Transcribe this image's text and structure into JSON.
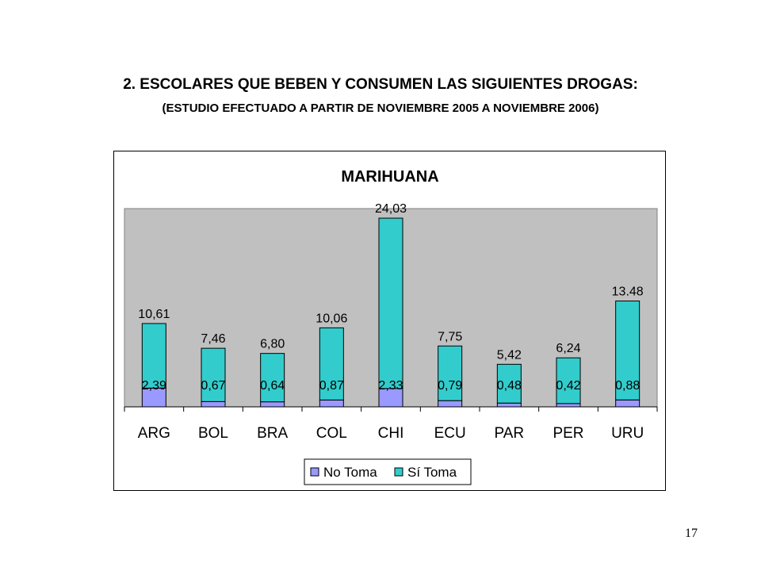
{
  "slide": {
    "title": "2. ESCOLARES QUE BEBEN Y CONSUMEN LAS SIGUIENTES DROGAS:",
    "subtitle": "(ESTUDIO EFECTUADO A PARTIR DE NOVIEMBRE 2005 A NOVIEMBRE 2006)",
    "page_number": "17"
  },
  "chart_data": {
    "type": "bar",
    "stacked": true,
    "title": "MARIHUANA",
    "categories": [
      "ARG",
      "BOL",
      "BRA",
      "COL",
      "CHI",
      "ECU",
      "PAR",
      "PER",
      "URU"
    ],
    "series": [
      {
        "name": "No Toma",
        "values": [
          2.39,
          0.67,
          0.64,
          0.87,
          2.33,
          0.79,
          0.48,
          0.42,
          0.88
        ],
        "labels": [
          "2,39",
          "0,67",
          "0,64",
          "0,87",
          "2,33",
          "0,79",
          "0,48",
          "0,42",
          "0,88"
        ],
        "color": "#9999ff"
      },
      {
        "name": "Sí Toma",
        "values": [
          8.22,
          6.79,
          6.16,
          9.19,
          21.7,
          6.96,
          4.94,
          5.82,
          12.6
        ],
        "color": "#33cccc"
      }
    ],
    "totals": [
      10.61,
      7.46,
      6.8,
      10.06,
      24.03,
      7.75,
      5.42,
      6.24,
      13.48
    ],
    "total_labels": [
      "10,61",
      "7,46",
      "6,80",
      "10,06",
      "24,03",
      "7,75",
      "5,42",
      "6,24",
      "13.48"
    ],
    "grid": false,
    "legend_position": "bottom",
    "plot_background": "#c0c0c0"
  }
}
